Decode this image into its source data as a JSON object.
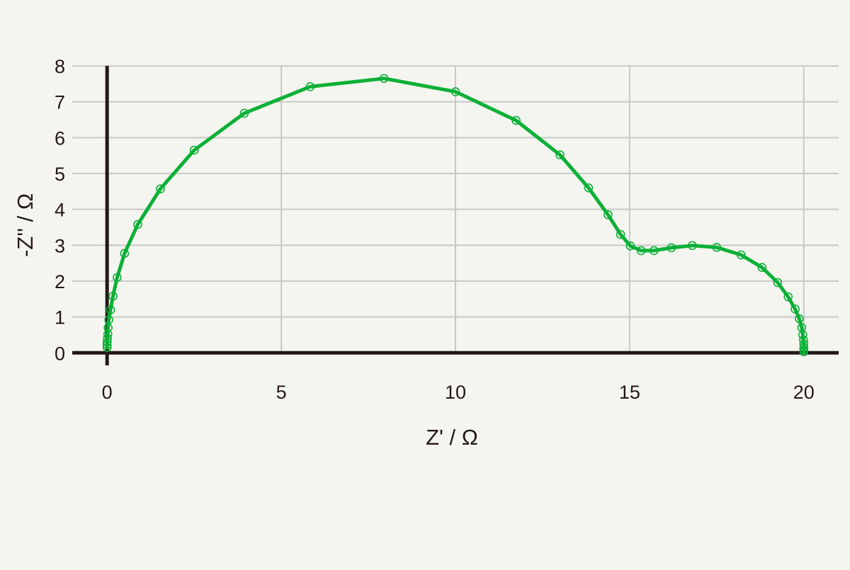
{
  "chart_data": {
    "type": "line",
    "xlabel": "Z' / Ω",
    "ylabel": "-Z'' / Ω",
    "xlim": [
      -1,
      21
    ],
    "ylim": [
      -0.35,
      8.1
    ],
    "xticks": [
      0,
      5,
      10,
      15,
      20
    ],
    "yticks": [
      0,
      1,
      2,
      3,
      4,
      5,
      6,
      7,
      8
    ],
    "grid": true,
    "legend": "none",
    "colors": {
      "background": "#f5f5f0",
      "grid": "#c8c8c8",
      "axis": "#231815",
      "series": "#0bb036"
    },
    "series": [
      {
        "marker": "open-circle",
        "x": [
          0.0,
          0.0,
          0.0,
          0.01,
          0.02,
          0.03,
          0.05,
          0.1,
          0.17,
          0.29,
          0.5,
          0.88,
          1.53,
          2.5,
          3.94,
          5.83,
          7.95,
          10.0,
          11.74,
          13.0,
          13.82,
          14.38,
          14.74,
          15.02,
          15.33,
          15.7,
          16.2,
          16.8,
          17.5,
          18.2,
          18.8,
          19.25,
          19.55,
          19.75,
          19.87,
          19.94,
          19.97,
          19.99,
          20.0,
          20.0,
          20.0,
          20.0
        ],
        "y": [
          0.15,
          0.22,
          0.3,
          0.4,
          0.52,
          0.7,
          0.92,
          1.2,
          1.58,
          2.1,
          2.77,
          3.58,
          4.57,
          5.65,
          6.68,
          7.42,
          7.65,
          7.28,
          6.48,
          5.52,
          4.6,
          3.85,
          3.3,
          2.98,
          2.85,
          2.85,
          2.93,
          2.99,
          2.94,
          2.73,
          2.38,
          1.96,
          1.56,
          1.22,
          0.95,
          0.7,
          0.5,
          0.36,
          0.25,
          0.15,
          0.08,
          0.03
        ]
      }
    ]
  }
}
